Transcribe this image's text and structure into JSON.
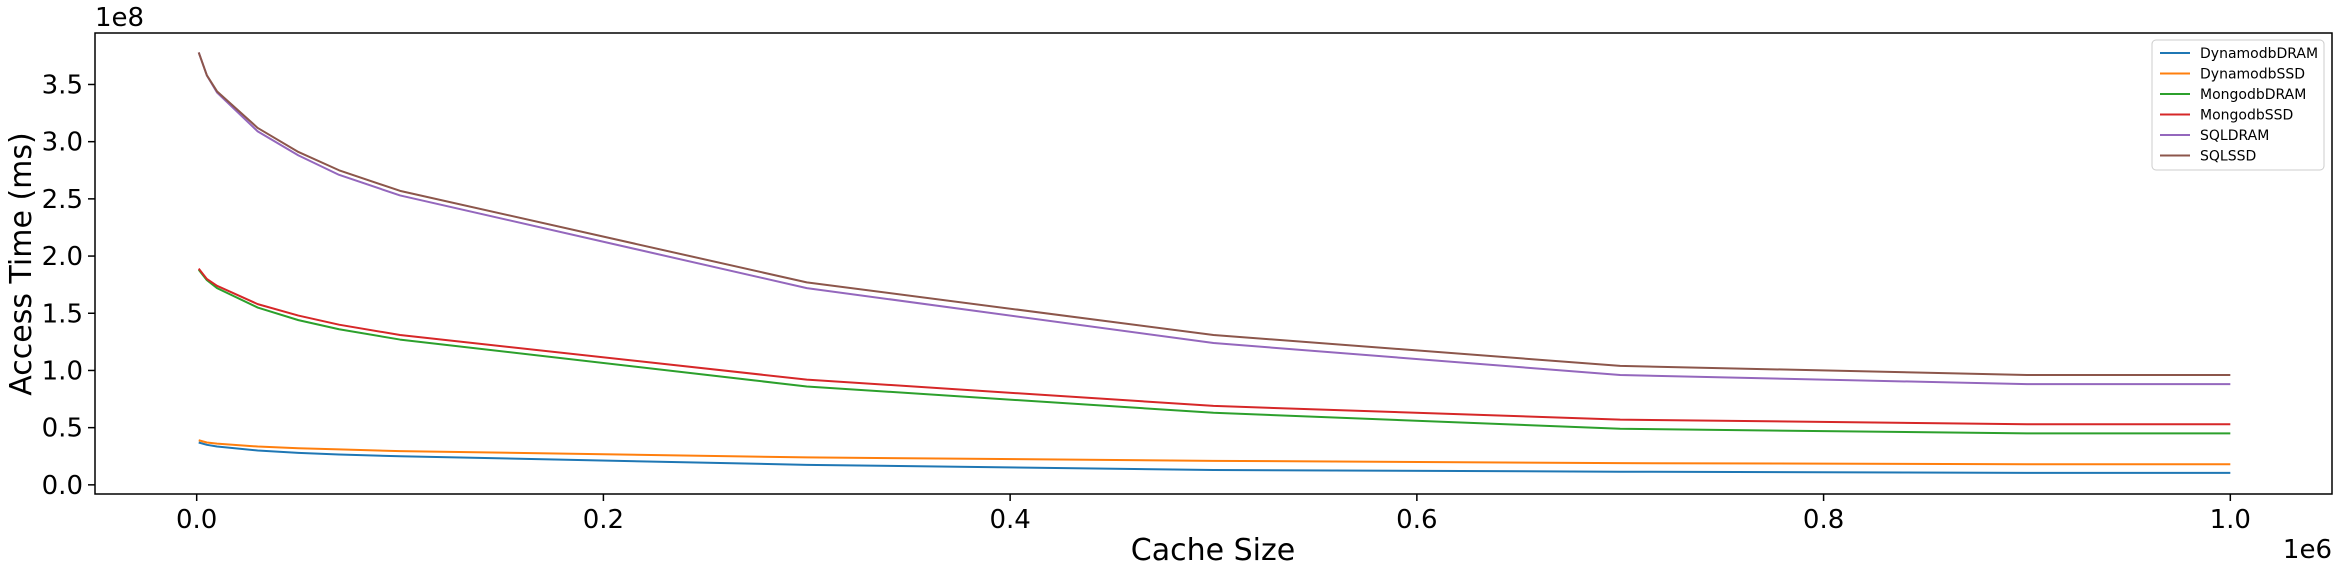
{
  "chart_data": {
    "type": "line",
    "title": "",
    "xlabel": "Cache Size",
    "ylabel": "Access Time (ms)",
    "x_multiplier_label": "1e6",
    "y_multiplier_label": "1e8",
    "xlim": [
      -50000,
      1050000
    ],
    "ylim": [
      -8000000,
      395000000
    ],
    "x_ticks": [
      0,
      200000,
      400000,
      600000,
      800000,
      1000000
    ],
    "x_tick_labels": [
      "0.0",
      "0.2",
      "0.4",
      "0.6",
      "0.8",
      "1.0"
    ],
    "y_ticks": [
      0,
      50000000,
      100000000,
      150000000,
      200000000,
      250000000,
      300000000,
      350000000
    ],
    "y_tick_labels": [
      "0.0",
      "0.5",
      "1.0",
      "1.5",
      "2.0",
      "2.5",
      "3.0",
      "3.5"
    ],
    "grid": false,
    "legend_position": "top-right",
    "x": [
      1000,
      5000,
      10000,
      30000,
      50000,
      70000,
      100000,
      300000,
      500000,
      700000,
      900000,
      1000000
    ],
    "series": [
      {
        "name": "DynamodbDRAM",
        "color": "#1f77b4",
        "values": [
          37000000,
          35000000,
          33500000,
          30000000,
          28000000,
          26500000,
          25000000,
          17500000,
          13000000,
          11500000,
          10500000,
          10500000
        ]
      },
      {
        "name": "DynamodbSSD",
        "color": "#ff7f0e",
        "values": [
          39000000,
          37000000,
          36000000,
          33500000,
          32000000,
          31000000,
          29500000,
          24000000,
          21000000,
          19000000,
          18000000,
          18000000
        ]
      },
      {
        "name": "MongodbDRAM",
        "color": "#2ca02c",
        "values": [
          188000000,
          179000000,
          172000000,
          155000000,
          144000000,
          136000000,
          127000000,
          86000000,
          63000000,
          49000000,
          45000000,
          45000000
        ]
      },
      {
        "name": "MongodbSSD",
        "color": "#d62728",
        "values": [
          189000000,
          180000000,
          174000000,
          158000000,
          148000000,
          140000000,
          131000000,
          92000000,
          69000000,
          57000000,
          53000000,
          53000000
        ]
      },
      {
        "name": "SQLDRAM",
        "color": "#9467bd",
        "values": [
          378000000,
          358000000,
          343000000,
          309000000,
          288000000,
          271000000,
          253000000,
          172000000,
          124000000,
          96000000,
          88000000,
          88000000
        ]
      },
      {
        "name": "SQLSSD",
        "color": "#8c564b",
        "values": [
          378000000,
          358000000,
          344000000,
          312000000,
          291000000,
          275000000,
          257000000,
          177000000,
          131000000,
          104000000,
          96000000,
          96000000
        ]
      }
    ]
  }
}
